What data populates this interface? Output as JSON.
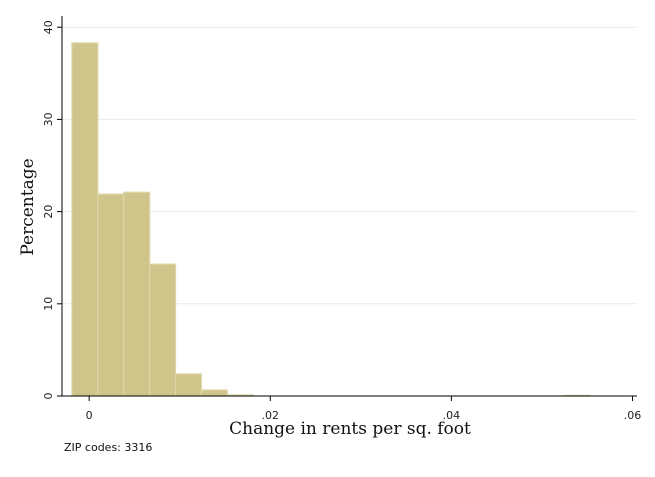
{
  "chart_data": {
    "type": "bar",
    "subtype": "histogram",
    "xlabel": "Change in rents per sq. foot",
    "ylabel": "Percentage",
    "xlim": [
      -0.003,
      0.0605
    ],
    "ylim": [
      0,
      41
    ],
    "xticks": [
      0,
      0.02,
      0.04,
      0.06
    ],
    "xtick_labels": [
      "0",
      ".02",
      ".04",
      ".06"
    ],
    "yticks": [
      0,
      10,
      20,
      30,
      40
    ],
    "ytick_labels": [
      "0",
      "10",
      "20",
      "30",
      "40"
    ],
    "bin_width": 0.00286,
    "bin_starts": [
      -0.0019,
      0.00096,
      0.00382,
      0.00668,
      0.00954,
      0.0124,
      0.01526,
      0.05245
    ],
    "values": [
      38.3,
      21.9,
      22.1,
      14.3,
      2.4,
      0.65,
      0.12,
      0.06
    ],
    "grid": true,
    "bar_color": "#cfc58a",
    "bar_edge_color": "#ddd6a8"
  },
  "note": "ZIP codes: 3316"
}
